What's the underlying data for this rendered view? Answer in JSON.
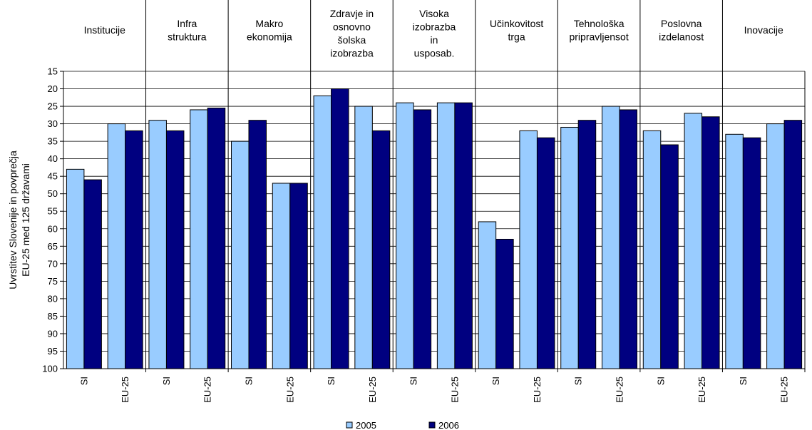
{
  "chart_data": {
    "type": "bar",
    "ylabel_lines": [
      "Uvrstitev Slovenije in povprečja",
      "EU-25 med 125 državami"
    ],
    "ylim": [
      15,
      100
    ],
    "y_inverted": true,
    "y_ticks": [
      15,
      20,
      25,
      30,
      35,
      40,
      45,
      50,
      55,
      60,
      65,
      70,
      75,
      80,
      85,
      90,
      95,
      100
    ],
    "grid": "horizontal",
    "legend_position": "bottom",
    "colors": {
      "2005": "#99ccff",
      "2006": "#000080"
    },
    "groups": [
      {
        "name_lines": [
          "Institucije"
        ]
      },
      {
        "name_lines": [
          "Infra",
          "struktura"
        ]
      },
      {
        "name_lines": [
          "Makro",
          "ekonomija"
        ]
      },
      {
        "name_lines": [
          "Zdravje in",
          "osnovno",
          "šolska",
          "izobrazba"
        ]
      },
      {
        "name_lines": [
          "Visoka",
          "izobrazba",
          "in",
          "usposab."
        ]
      },
      {
        "name_lines": [
          "Učinkovitost",
          "trga"
        ]
      },
      {
        "name_lines": [
          "Tehnološka",
          "pripravljensot"
        ]
      },
      {
        "name_lines": [
          "Poslovna",
          "izdelanost"
        ]
      },
      {
        "name_lines": [
          "Inovacije"
        ]
      }
    ],
    "categories": [
      "SI",
      "EU-25",
      "SI",
      "EU-25",
      "SI",
      "EU-25",
      "SI",
      "EU-25",
      "SI",
      "EU-25",
      "SI",
      "EU-25",
      "SI",
      "EU-25",
      "SI",
      "EU-25",
      "SI",
      "EU-25"
    ],
    "series": [
      {
        "name": "2005",
        "values": [
          43,
          30,
          29,
          26,
          35,
          47,
          22,
          25,
          24,
          24,
          58,
          32,
          31,
          25,
          32,
          27,
          33,
          30
        ]
      },
      {
        "name": "2006",
        "values": [
          46,
          32,
          32,
          25.5,
          29,
          47,
          20,
          32,
          26,
          24,
          63,
          34,
          29,
          26,
          36,
          28,
          34,
          29
        ]
      }
    ]
  }
}
